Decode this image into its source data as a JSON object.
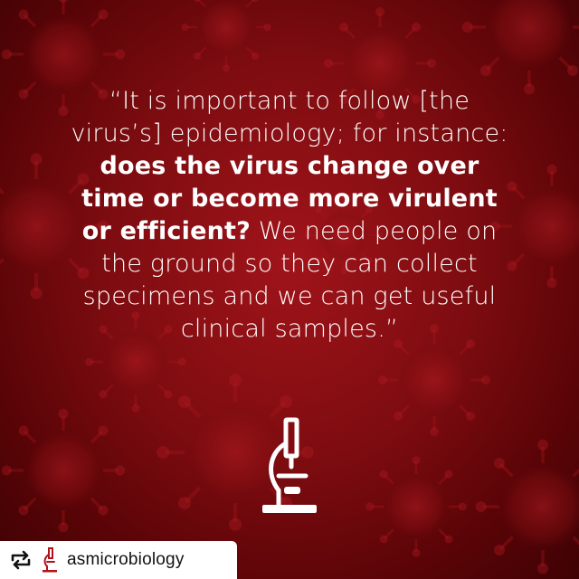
{
  "quote": {
    "line1": "“It is important to follow [the",
    "line2": "virus’s] epidemiology; for instance:",
    "line3_bold": "does the virus change over",
    "line4_bold": "time or become more virulent",
    "line5_bold": "or efficient?",
    "line5_rest": " We need people on",
    "line6": "the ground so they can collect",
    "line7": "specimens and we can get useful",
    "line8": "clinical samples.”"
  },
  "repost": {
    "username": "asmicrobiology",
    "repost_icon": "repost-icon",
    "logo_icon": "microscope-logo-icon"
  },
  "icons": {
    "center": "microscope-icon"
  },
  "colors": {
    "background": "#7d0c10",
    "text": "#ffffff",
    "logo_red": "#b3121b",
    "bar": "#ffffff"
  }
}
